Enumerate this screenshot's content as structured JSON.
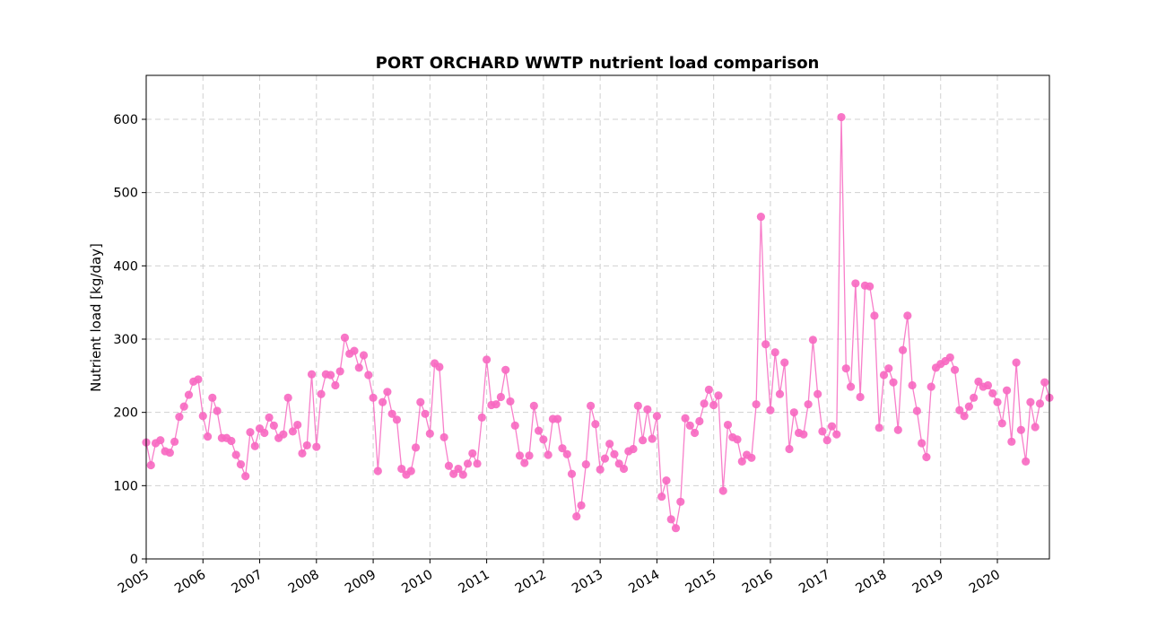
{
  "chart_data": {
    "type": "line",
    "title": "PORT ORCHARD WWTP nutrient load comparison",
    "xlabel": "",
    "ylabel": "Nutrient load [kg/day]",
    "ylim": [
      0,
      660
    ],
    "yticks": [
      0,
      100,
      200,
      300,
      400,
      500,
      600
    ],
    "xlim": [
      "2005-01",
      "2020-12"
    ],
    "xticks": [
      "2005",
      "2006",
      "2007",
      "2008",
      "2009",
      "2010",
      "2011",
      "2012",
      "2013",
      "2014",
      "2015",
      "2016",
      "2017",
      "2018",
      "2019",
      "2020"
    ],
    "grid": true,
    "marker": "circle",
    "colors": {
      "series": "#f768c1",
      "grid": "#d0d0d0"
    },
    "series": [
      {
        "x": [
          "2005-01",
          "2005-02",
          "2005-03",
          "2005-04",
          "2005-05",
          "2005-06",
          "2005-07",
          "2005-08",
          "2005-09",
          "2005-10",
          "2005-11",
          "2005-12",
          "2006-01",
          "2006-02",
          "2006-03",
          "2006-04",
          "2006-05",
          "2006-06",
          "2006-07",
          "2006-08",
          "2006-09",
          "2006-10",
          "2006-11",
          "2006-12",
          "2007-01",
          "2007-02",
          "2007-03",
          "2007-04",
          "2007-05",
          "2007-06",
          "2007-07",
          "2007-08",
          "2007-09",
          "2007-10",
          "2007-11",
          "2007-12",
          "2008-01",
          "2008-02",
          "2008-03",
          "2008-04",
          "2008-05",
          "2008-06",
          "2008-07",
          "2008-08",
          "2008-09",
          "2008-10",
          "2008-11",
          "2008-12",
          "2009-01",
          "2009-02",
          "2009-03",
          "2009-04",
          "2009-05",
          "2009-06",
          "2009-07",
          "2009-08",
          "2009-09",
          "2009-10",
          "2009-11",
          "2009-12",
          "2010-01",
          "2010-02",
          "2010-03",
          "2010-04",
          "2010-05",
          "2010-06",
          "2010-07",
          "2010-08",
          "2010-09",
          "2010-10",
          "2010-11",
          "2010-12",
          "2011-01",
          "2011-02",
          "2011-03",
          "2011-04",
          "2011-05",
          "2011-06",
          "2011-07",
          "2011-08",
          "2011-09",
          "2011-10",
          "2011-11",
          "2011-12",
          "2012-01",
          "2012-02",
          "2012-03",
          "2012-04",
          "2012-05",
          "2012-06",
          "2012-07",
          "2012-08",
          "2012-09",
          "2012-10",
          "2012-11",
          "2012-12",
          "2013-01",
          "2013-02",
          "2013-03",
          "2013-04",
          "2013-05",
          "2013-06",
          "2013-07",
          "2013-08",
          "2013-09",
          "2013-10",
          "2013-11",
          "2013-12",
          "2014-01",
          "2014-02",
          "2014-03",
          "2014-04",
          "2014-05",
          "2014-06",
          "2014-07",
          "2014-08",
          "2014-09",
          "2014-10",
          "2014-11",
          "2014-12",
          "2015-01",
          "2015-02",
          "2015-03",
          "2015-04",
          "2015-05",
          "2015-06",
          "2015-07",
          "2015-08",
          "2015-09",
          "2015-10",
          "2015-11",
          "2015-12",
          "2016-01",
          "2016-02",
          "2016-03",
          "2016-04",
          "2016-05",
          "2016-06",
          "2016-07",
          "2016-08",
          "2016-09",
          "2016-10",
          "2016-11",
          "2016-12",
          "2017-01",
          "2017-02",
          "2017-03",
          "2017-04",
          "2017-05",
          "2017-06",
          "2017-07",
          "2017-08",
          "2017-09",
          "2017-10",
          "2017-11",
          "2017-12",
          "2018-01",
          "2018-02",
          "2018-03",
          "2018-04",
          "2018-05",
          "2018-06",
          "2018-07",
          "2018-08",
          "2018-09",
          "2018-10",
          "2018-11",
          "2018-12",
          "2019-01",
          "2019-02",
          "2019-03",
          "2019-04",
          "2019-05",
          "2019-06",
          "2019-07",
          "2019-08",
          "2019-09",
          "2019-10",
          "2019-11",
          "2019-12",
          "2020-01",
          "2020-02",
          "2020-03",
          "2020-04",
          "2020-05",
          "2020-06",
          "2020-07",
          "2020-08",
          "2020-09",
          "2020-10",
          "2020-11",
          "2020-12"
        ],
        "values": [
          159,
          128,
          158,
          162,
          147,
          145,
          160,
          194,
          208,
          224,
          242,
          245,
          195,
          167,
          220,
          202,
          165,
          165,
          161,
          142,
          129,
          113,
          173,
          154,
          178,
          172,
          193,
          182,
          165,
          170,
          220,
          174,
          183,
          144,
          155,
          252,
          153,
          225,
          252,
          251,
          237,
          256,
          302,
          280,
          284,
          261,
          278,
          251,
          220,
          120,
          214,
          228,
          198,
          190,
          123,
          115,
          120,
          152,
          214,
          198,
          171,
          267,
          262,
          166,
          127,
          116,
          123,
          115,
          130,
          144,
          130,
          193,
          272,
          210,
          211,
          221,
          258,
          215,
          182,
          141,
          131,
          141,
          209,
          175,
          163,
          142,
          191,
          191,
          151,
          143,
          116,
          58,
          73,
          129,
          209,
          184,
          122,
          137,
          157,
          143,
          130,
          123,
          147,
          150,
          209,
          162,
          204,
          164,
          195,
          85,
          107,
          54,
          42,
          78,
          192,
          182,
          172,
          188,
          212,
          231,
          210,
          223,
          93,
          183,
          166,
          163,
          133,
          142,
          138,
          211,
          467,
          293,
          203,
          282,
          225,
          268,
          150,
          200,
          172,
          170,
          211,
          299,
          225,
          174,
          162,
          181,
          170,
          603,
          260,
          235,
          376,
          221,
          373,
          372,
          332,
          179,
          251,
          260,
          241,
          176,
          285,
          332,
          237,
          202,
          158,
          139,
          235,
          261,
          266,
          270,
          275,
          258,
          203,
          195,
          208,
          220,
          242,
          235,
          237,
          226,
          214,
          185,
          230,
          160,
          268,
          176,
          133,
          214,
          180,
          212,
          241,
          220
        ]
      }
    ]
  }
}
